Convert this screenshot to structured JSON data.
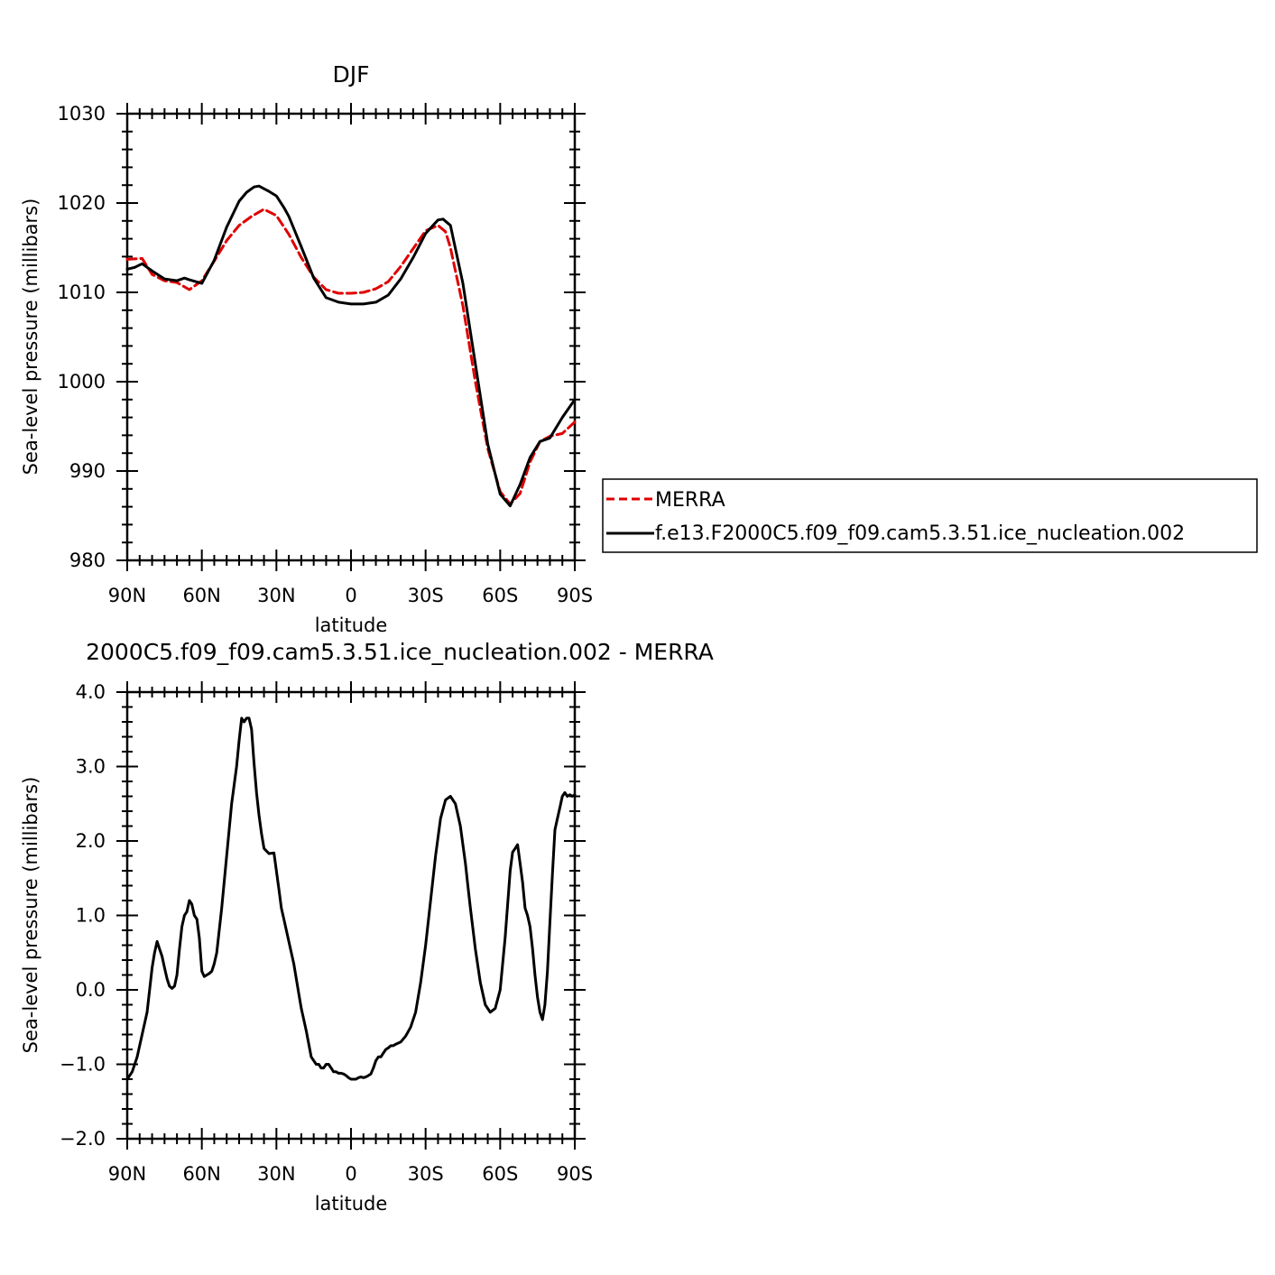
{
  "colors": {
    "merra": "#e00000",
    "model": "#000000",
    "axis": "#000000",
    "background": "#ffffff"
  },
  "chart_data": [
    {
      "type": "line",
      "title": "DJF",
      "xlabel": "latitude",
      "ylabel": "Sea-level pressure (millibars)",
      "xlim": [
        90,
        -90
      ],
      "ylim": [
        980,
        1030
      ],
      "x_ticks": [
        90,
        60,
        30,
        0,
        -30,
        -60,
        -90
      ],
      "x_tick_labels": [
        "90N",
        "60N",
        "30N",
        "0",
        "30S",
        "60S",
        "90S"
      ],
      "y_ticks": [
        980,
        990,
        1000,
        1010,
        1020,
        1030
      ],
      "y_tick_labels": [
        "980",
        "990",
        "1000",
        "1010",
        "1020",
        "1030"
      ],
      "legend_placement": "right",
      "series": [
        {
          "name": "MERRA",
          "style": "dashed",
          "color": "#e00000",
          "x": [
            90,
            84,
            80,
            75,
            70,
            65,
            60,
            55,
            50,
            45,
            40,
            35,
            30,
            25,
            20,
            15,
            10,
            5,
            0,
            -5,
            -10,
            -15,
            -20,
            -25,
            -30,
            -35,
            -38,
            -40,
            -45,
            -50,
            -55,
            -60,
            -64,
            -68,
            -72,
            -76,
            -80,
            -85,
            -90
          ],
          "y": [
            1013.7,
            1013.8,
            1012.0,
            1011.3,
            1011.1,
            1010.3,
            1011.3,
            1013.5,
            1015.8,
            1017.5,
            1018.5,
            1019.3,
            1018.6,
            1016.5,
            1013.9,
            1011.7,
            1010.3,
            1009.9,
            1009.9,
            1010.0,
            1010.4,
            1011.2,
            1012.9,
            1014.9,
            1016.9,
            1017.5,
            1016.8,
            1015.0,
            1008.5,
            1000.0,
            992.5,
            987.7,
            986.3,
            987.5,
            991.0,
            993.3,
            993.9,
            994.2,
            995.5
          ]
        },
        {
          "name": "f.e13.F2000C5.f09_f09.cam5.3.51.ice_nucleation.002",
          "style": "solid",
          "color": "#000000",
          "x": [
            90,
            87,
            84,
            80,
            75,
            70,
            67,
            65,
            60,
            55,
            50,
            45,
            42,
            39,
            37,
            35,
            33,
            30,
            27,
            25,
            20,
            15,
            10,
            5,
            0,
            -5,
            -10,
            -15,
            -20,
            -25,
            -30,
            -35,
            -37,
            -40,
            -45,
            -50,
            -55,
            -60,
            -64,
            -68,
            -72,
            -76,
            -80,
            -85,
            -90
          ],
          "y": [
            1012.6,
            1012.8,
            1013.2,
            1012.4,
            1011.5,
            1011.3,
            1011.6,
            1011.4,
            1011.0,
            1013.6,
            1017.3,
            1020.2,
            1021.2,
            1021.8,
            1021.9,
            1021.6,
            1021.3,
            1020.8,
            1019.5,
            1018.5,
            1015.1,
            1011.6,
            1009.4,
            1008.9,
            1008.7,
            1008.7,
            1008.9,
            1009.7,
            1011.5,
            1013.9,
            1016.6,
            1018.1,
            1018.2,
            1017.5,
            1011.0,
            1002.0,
            993.0,
            987.4,
            986.1,
            988.5,
            991.5,
            993.3,
            993.7,
            996.0,
            998.0
          ]
        }
      ]
    },
    {
      "type": "line",
      "title": "2000C5.f09_f09.cam5.3.51.ice_nucleation.002 - MERRA",
      "xlabel": "latitude",
      "ylabel": "Sea-level pressure (millibars)",
      "xlim": [
        90,
        -90
      ],
      "ylim": [
        -2.0,
        4.0
      ],
      "x_ticks": [
        90,
        60,
        30,
        0,
        -30,
        -60,
        -90
      ],
      "x_tick_labels": [
        "90N",
        "60N",
        "30N",
        "0",
        "30S",
        "60S",
        "90S"
      ],
      "y_ticks": [
        -2.0,
        -1.0,
        0.0,
        1.0,
        2.0,
        3.0,
        4.0
      ],
      "y_tick_labels": [
        "−2.0",
        "−1.0",
        "0.0",
        "1.0",
        "2.0",
        "3.0",
        "4.0"
      ],
      "series": [
        {
          "style": "solid",
          "color": "#000000",
          "x": [
            90,
            88,
            86,
            84,
            82,
            80,
            79,
            78,
            77,
            76,
            75,
            74,
            73,
            72,
            71,
            70,
            69,
            68,
            67,
            66,
            65,
            64,
            63,
            62,
            61,
            60,
            59,
            58,
            57,
            56,
            55,
            54,
            52,
            50,
            48,
            46,
            45,
            44,
            43,
            42,
            41,
            40,
            39,
            38,
            37,
            36,
            35,
            33,
            31,
            30,
            29,
            28,
            27,
            25,
            23,
            21,
            20,
            18,
            16,
            14,
            13,
            12,
            11,
            10,
            9,
            8,
            7,
            6,
            5,
            4,
            3,
            2,
            1,
            0,
            -1,
            -2,
            -3,
            -4,
            -5,
            -6,
            -7,
            -8,
            -9,
            -10,
            -11,
            -12,
            -13,
            -14,
            -15,
            -16,
            -17,
            -18,
            -20,
            -22,
            -24,
            -26,
            -28,
            -30,
            -32,
            -34,
            -36,
            -38,
            -40,
            -42,
            -44,
            -46,
            -47,
            -48,
            -50,
            -52,
            -54,
            -56,
            -58,
            -60,
            -62,
            -64,
            -65,
            -66,
            -67,
            -68,
            -69,
            -70,
            -71,
            -72,
            -73,
            -74,
            -75,
            -76,
            -77,
            -78,
            -79,
            -80,
            -81,
            -82,
            -83,
            -84,
            -85,
            -86,
            -87,
            -88,
            -89,
            -90
          ],
          "y": [
            -1.2,
            -1.1,
            -0.9,
            -0.6,
            -0.3,
            0.3,
            0.5,
            0.65,
            0.55,
            0.45,
            0.3,
            0.15,
            0.05,
            0.02,
            0.05,
            0.2,
            0.55,
            0.85,
            1.0,
            1.05,
            1.2,
            1.15,
            1.0,
            0.95,
            0.7,
            0.25,
            0.18,
            0.2,
            0.22,
            0.25,
            0.35,
            0.5,
            1.1,
            1.8,
            2.5,
            3.0,
            3.35,
            3.65,
            3.6,
            3.65,
            3.65,
            3.5,
            3.05,
            2.65,
            2.35,
            2.1,
            1.9,
            1.83,
            1.84,
            1.6,
            1.35,
            1.1,
            0.95,
            0.65,
            0.35,
            -0.05,
            -0.25,
            -0.55,
            -0.9,
            -1.0,
            -1.0,
            -1.05,
            -1.05,
            -1.0,
            -1.0,
            -1.05,
            -1.1,
            -1.1,
            -1.12,
            -1.12,
            -1.13,
            -1.15,
            -1.18,
            -1.2,
            -1.2,
            -1.2,
            -1.18,
            -1.17,
            -1.18,
            -1.17,
            -1.15,
            -1.13,
            -1.05,
            -0.95,
            -0.9,
            -0.9,
            -0.85,
            -0.8,
            -0.78,
            -0.75,
            -0.75,
            -0.73,
            -0.7,
            -0.62,
            -0.5,
            -0.3,
            0.1,
            0.6,
            1.2,
            1.8,
            2.3,
            2.55,
            2.6,
            2.5,
            2.2,
            1.7,
            1.4,
            1.1,
            0.55,
            0.1,
            -0.2,
            -0.3,
            -0.25,
            0.0,
            0.7,
            1.6,
            1.85,
            1.9,
            1.95,
            1.7,
            1.45,
            1.1,
            1.0,
            0.85,
            0.55,
            0.2,
            -0.1,
            -0.3,
            -0.4,
            -0.2,
            0.25,
            0.9,
            1.55,
            2.15,
            2.3,
            2.45,
            2.6,
            2.65,
            2.6,
            2.62,
            2.6,
            2.62
          ]
        }
      ]
    }
  ]
}
